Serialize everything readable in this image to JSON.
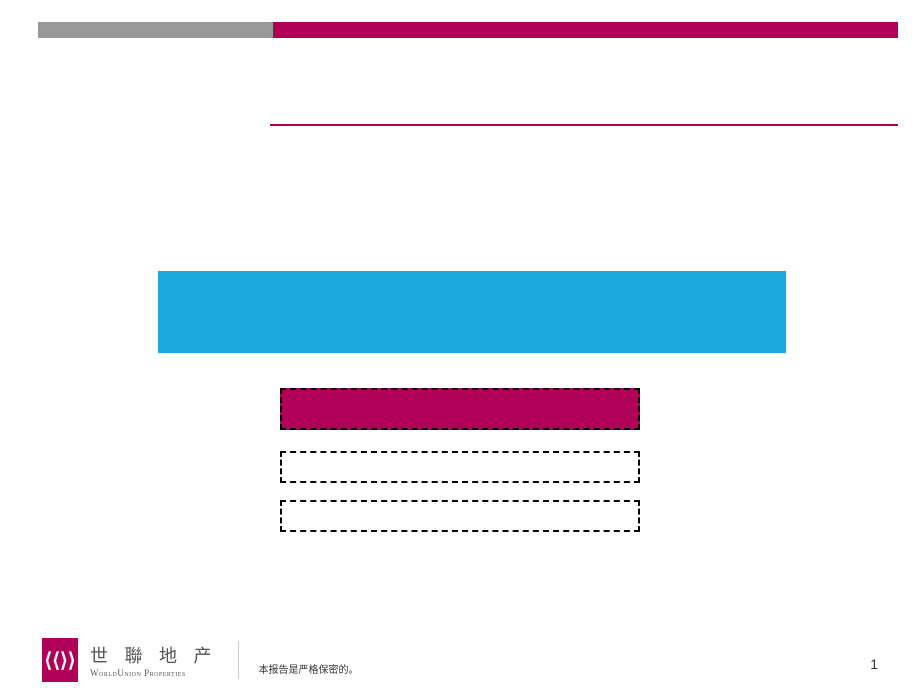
{
  "header": {
    "gray_bar_color": "#999999",
    "magenta_bar_color": "#b10058",
    "divider_color": "#b10058"
  },
  "blocks": {
    "cyan_color": "#1ea8e0",
    "magenta_fill": "#b10058",
    "dash_border_color": "#000000",
    "box_bg": "#ffffff"
  },
  "footer": {
    "logo_glyph": "⟨⟨⟩⟩",
    "logo_cn": "世 聯 地 产",
    "logo_en": "WorldUnion Properties",
    "confidential_text": "本报告是严格保密的。",
    "page_number": "1",
    "logo_bg": "#b10058"
  }
}
